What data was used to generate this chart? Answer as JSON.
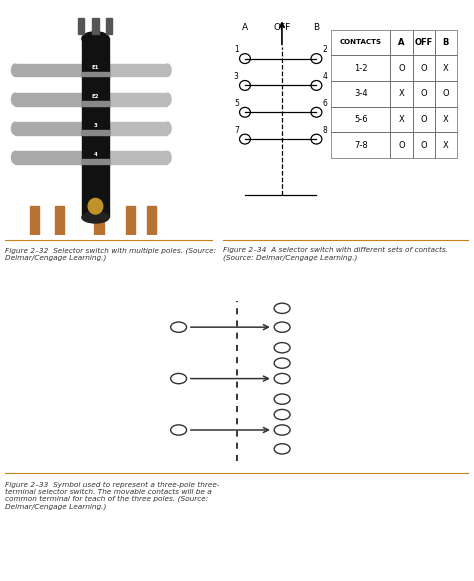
{
  "bg_color": "#ffffff",
  "light_blue": "#bcd8ea",
  "figure_caption_color": "#c8801a",
  "figure_size": [
    4.74,
    5.81
  ],
  "dpi": 100,
  "top_left_caption": "Figure 2–32  Selector switch with multiple poles. (Source:\nDelmar/Cengage Learning.)",
  "top_right_caption": "Figure 2–34  A selector switch with different sets of contacts.\n(Source: Delmar/Cengage Learning.)",
  "bottom_caption": "Figure 2–33  Symbol used to represent a three-pole three-\nterminal selector switch. The movable contacts will be a\ncommon terminal for teach of the three poles. (Source:\nDelmar/Cengage Learning.)",
  "switch_diagram": {
    "contacts": [
      "1-2",
      "3-4",
      "5-6",
      "7-8"
    ],
    "col_A": [
      "O",
      "X",
      "X",
      "O"
    ],
    "col_OFF": [
      "O",
      "O",
      "O",
      "O"
    ],
    "col_B": [
      "X",
      "O",
      "X",
      "X"
    ]
  }
}
